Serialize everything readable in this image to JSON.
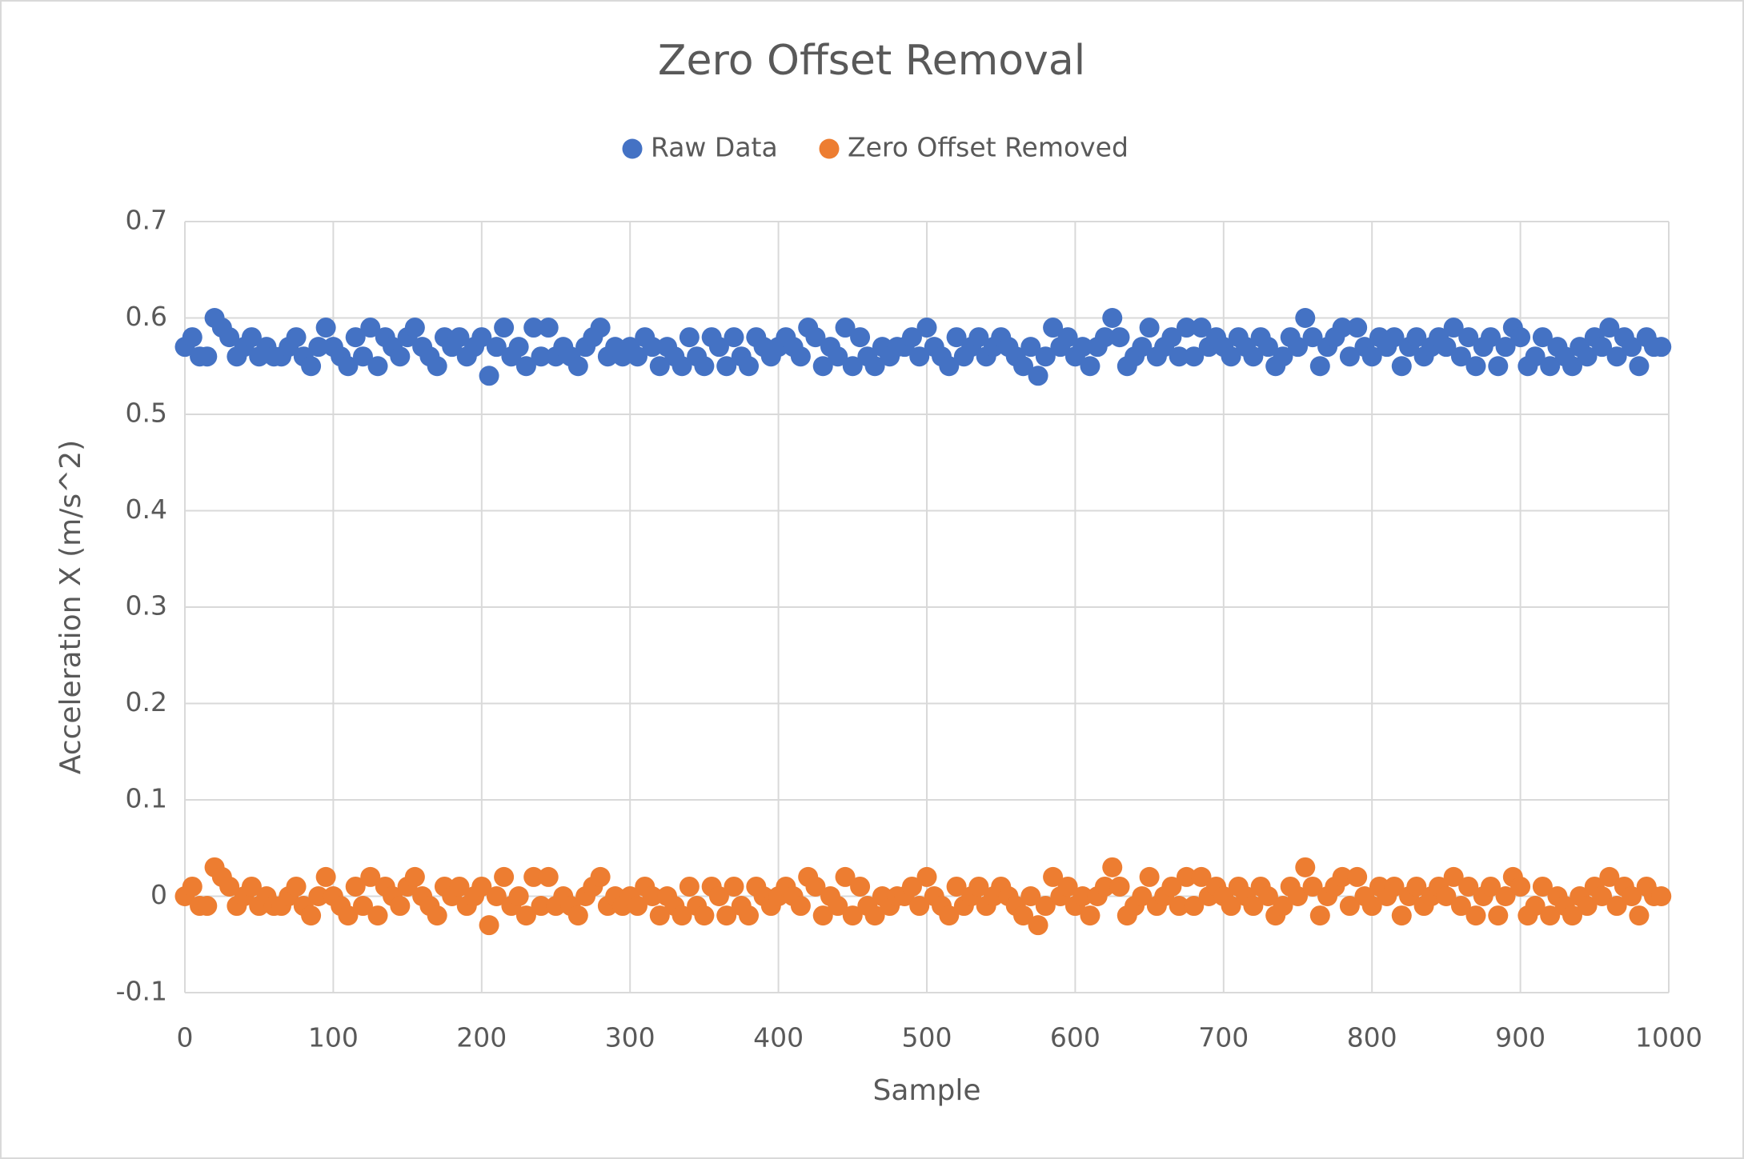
{
  "chart_data": {
    "type": "scatter",
    "title": "Zero Offset Removal",
    "x_label": "Sample",
    "y_label": "Acceleration X (m/s^2)",
    "xlim": [
      0,
      1000
    ],
    "xticks": [
      0,
      100,
      200,
      300,
      400,
      500,
      600,
      700,
      800,
      900,
      1000
    ],
    "ylim": [
      -0.1,
      0.7
    ],
    "yticks": [
      -0.1,
      0,
      0.1,
      0.2,
      0.3,
      0.4,
      0.5,
      0.6,
      0.7
    ],
    "grid": true,
    "legend": "top",
    "x": [
      0,
      5,
      10,
      15,
      20,
      25,
      30,
      35,
      40,
      45,
      50,
      55,
      60,
      65,
      70,
      75,
      80,
      85,
      90,
      95,
      100,
      105,
      110,
      115,
      120,
      125,
      130,
      135,
      140,
      145,
      150,
      155,
      160,
      165,
      170,
      175,
      180,
      185,
      190,
      195,
      200,
      205,
      210,
      215,
      220,
      225,
      230,
      235,
      240,
      245,
      250,
      255,
      260,
      265,
      270,
      275,
      280,
      285,
      290,
      295,
      300,
      305,
      310,
      315,
      320,
      325,
      330,
      335,
      340,
      345,
      350,
      355,
      360,
      365,
      370,
      375,
      380,
      385,
      390,
      395,
      400,
      405,
      410,
      415,
      420,
      425,
      430,
      435,
      440,
      445,
      450,
      455,
      460,
      465,
      470,
      475,
      480,
      485,
      490,
      495,
      500,
      505,
      510,
      515,
      520,
      525,
      530,
      535,
      540,
      545,
      550,
      555,
      560,
      565,
      570,
      575,
      580,
      585,
      590,
      595,
      600,
      605,
      610,
      615,
      620,
      625,
      630,
      635,
      640,
      645,
      650,
      655,
      660,
      665,
      670,
      675,
      680,
      685,
      690,
      695,
      700,
      705,
      710,
      715,
      720,
      725,
      730,
      735,
      740,
      745,
      750,
      755,
      760,
      765,
      770,
      775,
      780,
      785,
      790,
      795,
      800,
      805,
      810,
      815,
      820,
      825,
      830,
      835,
      840,
      845,
      850,
      855,
      860,
      865,
      870,
      875,
      880,
      885,
      890,
      895,
      900,
      905,
      910,
      915,
      920,
      925,
      930,
      935,
      940,
      945,
      950,
      955,
      960,
      965,
      970,
      975,
      980,
      985,
      990,
      995
    ],
    "series": [
      {
        "name": "Raw Data",
        "color": "#4472c4",
        "values": [
          0.57,
          0.58,
          0.56,
          0.56,
          0.6,
          0.59,
          0.58,
          0.56,
          0.57,
          0.58,
          0.56,
          0.57,
          0.56,
          0.56,
          0.57,
          0.58,
          0.56,
          0.55,
          0.57,
          0.59,
          0.57,
          0.56,
          0.55,
          0.58,
          0.56,
          0.59,
          0.55,
          0.58,
          0.57,
          0.56,
          0.58,
          0.59,
          0.57,
          0.56,
          0.55,
          0.58,
          0.57,
          0.58,
          0.56,
          0.57,
          0.58,
          0.54,
          0.57,
          0.59,
          0.56,
          0.57,
          0.55,
          0.59,
          0.56,
          0.59,
          0.56,
          0.57,
          0.56,
          0.55,
          0.57,
          0.58,
          0.59,
          0.56,
          0.57,
          0.56,
          0.57,
          0.56,
          0.58,
          0.57,
          0.55,
          0.57,
          0.56,
          0.55,
          0.58,
          0.56,
          0.55,
          0.58,
          0.57,
          0.55,
          0.58,
          0.56,
          0.55,
          0.58,
          0.57,
          0.56,
          0.57,
          0.58,
          0.57,
          0.56,
          0.59,
          0.58,
          0.55,
          0.57,
          0.56,
          0.59,
          0.55,
          0.58,
          0.56,
          0.55,
          0.57,
          0.56,
          0.57,
          0.57,
          0.58,
          0.56,
          0.59,
          0.57,
          0.56,
          0.55,
          0.58,
          0.56,
          0.57,
          0.58,
          0.56,
          0.57,
          0.58,
          0.57,
          0.56,
          0.55,
          0.57,
          0.54,
          0.56,
          0.59,
          0.57,
          0.58,
          0.56,
          0.57,
          0.55,
          0.57,
          0.58,
          0.6,
          0.58,
          0.55,
          0.56,
          0.57,
          0.59,
          0.56,
          0.57,
          0.58,
          0.56,
          0.59,
          0.56,
          0.59,
          0.57,
          0.58,
          0.57,
          0.56,
          0.58,
          0.57,
          0.56,
          0.58,
          0.57,
          0.55,
          0.56,
          0.58,
          0.57,
          0.6,
          0.58,
          0.55,
          0.57,
          0.58,
          0.59,
          0.56,
          0.59,
          0.57,
          0.56,
          0.58,
          0.57,
          0.58,
          0.55,
          0.57,
          0.58,
          0.56,
          0.57,
          0.58,
          0.57,
          0.59,
          0.56,
          0.58,
          0.55,
          0.57,
          0.58,
          0.55,
          0.57,
          0.59,
          0.58,
          0.55,
          0.56,
          0.58,
          0.55,
          0.57,
          0.56,
          0.55,
          0.57,
          0.56,
          0.58,
          0.57,
          0.59,
          0.56,
          0.58,
          0.57,
          0.55,
          0.58,
          0.57,
          0.57
        ]
      },
      {
        "name": "Zero Offset Removed",
        "color": "#ed7d31",
        "values": [
          0,
          0.01,
          -0.01,
          -0.01,
          0.03,
          0.02,
          0.01,
          -0.01,
          0,
          0.01,
          -0.01,
          0,
          -0.01,
          -0.01,
          0,
          0.01,
          -0.01,
          -0.02,
          0,
          0.02,
          0,
          -0.01,
          -0.02,
          0.01,
          -0.01,
          0.02,
          -0.02,
          0.01,
          0,
          -0.01,
          0.01,
          0.02,
          0,
          -0.01,
          -0.02,
          0.01,
          0,
          0.01,
          -0.01,
          0,
          0.01,
          -0.03,
          0,
          0.02,
          -0.01,
          0,
          -0.02,
          0.02,
          -0.01,
          0.02,
          -0.01,
          0,
          -0.01,
          -0.02,
          0,
          0.01,
          0.02,
          -0.01,
          0,
          -0.01,
          0,
          -0.01,
          0.01,
          0,
          -0.02,
          0,
          -0.01,
          -0.02,
          0.01,
          -0.01,
          -0.02,
          0.01,
          0,
          -0.02,
          0.01,
          -0.01,
          -0.02,
          0.01,
          0,
          -0.01,
          0,
          0.01,
          0,
          -0.01,
          0.02,
          0.01,
          -0.02,
          0,
          -0.01,
          0.02,
          -0.02,
          0.01,
          -0.01,
          -0.02,
          0,
          -0.01,
          0,
          0,
          0.01,
          -0.01,
          0.02,
          0,
          -0.01,
          -0.02,
          0.01,
          -0.01,
          0,
          0.01,
          -0.01,
          0,
          0.01,
          0,
          -0.01,
          -0.02,
          0,
          -0.03,
          -0.01,
          0.02,
          0,
          0.01,
          -0.01,
          0,
          -0.02,
          0,
          0.01,
          0.03,
          0.01,
          -0.02,
          -0.01,
          0,
          0.02,
          -0.01,
          0,
          0.01,
          -0.01,
          0.02,
          -0.01,
          0.02,
          0,
          0.01,
          0,
          -0.01,
          0.01,
          0,
          -0.01,
          0.01,
          0,
          -0.02,
          -0.01,
          0.01,
          0,
          0.03,
          0.01,
          -0.02,
          0,
          0.01,
          0.02,
          -0.01,
          0.02,
          0,
          -0.01,
          0.01,
          0,
          0.01,
          -0.02,
          0,
          0.01,
          -0.01,
          0,
          0.01,
          0,
          0.02,
          -0.01,
          0.01,
          -0.02,
          0,
          0.01,
          -0.02,
          0,
          0.02,
          0.01,
          -0.02,
          -0.01,
          0.01,
          -0.02,
          0,
          -0.01,
          -0.02,
          0,
          -0.01,
          0.01,
          0,
          0.02,
          -0.01,
          0.01,
          0,
          -0.02,
          0.01,
          0,
          0
        ]
      }
    ]
  }
}
